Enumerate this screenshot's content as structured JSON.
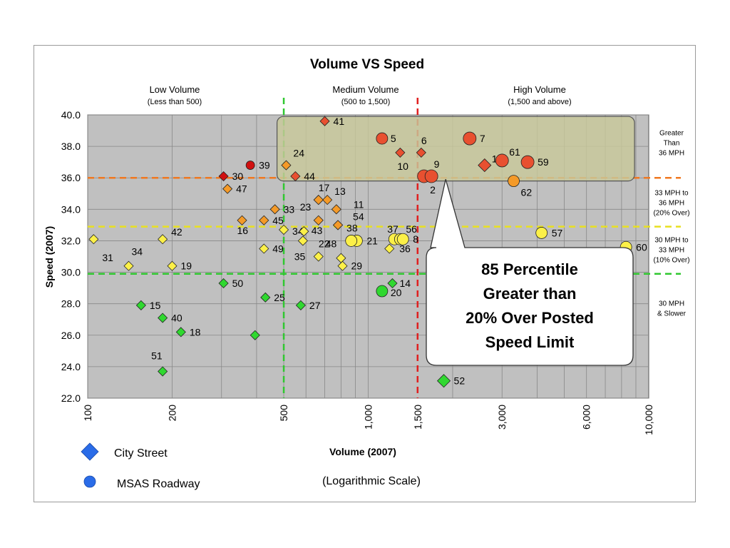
{
  "chart_data": {
    "type": "scatter",
    "title": "Volume VS Speed",
    "xlabel": "Volume (2007)",
    "xlabel_note": "(Logarithmic Scale)",
    "ylabel": "Speed (2007)",
    "x_scale": "log",
    "xlim": [
      100,
      10000
    ],
    "ylim": [
      22,
      40
    ],
    "grid": true,
    "x_ticks": [
      {
        "v": 100,
        "label": "100"
      },
      {
        "v": 200,
        "label": "200"
      },
      {
        "v": 500,
        "label": "500"
      },
      {
        "v": 1000,
        "label": "1,000"
      },
      {
        "v": 1500,
        "label": "1,500"
      },
      {
        "v": 3000,
        "label": "3,000"
      },
      {
        "v": 6000,
        "label": "6,000"
      },
      {
        "v": 10000,
        "label": "10,000"
      }
    ],
    "y_ticks": [
      {
        "v": 40,
        "label": "40.0"
      },
      {
        "v": 38,
        "label": "38.0"
      },
      {
        "v": 36,
        "label": "36.0"
      },
      {
        "v": 34,
        "label": "34.0"
      },
      {
        "v": 32,
        "label": "32.0"
      },
      {
        "v": 30,
        "label": "30.0"
      },
      {
        "v": 28,
        "label": "28.0"
      },
      {
        "v": 26,
        "label": "26.0"
      },
      {
        "v": 24,
        "label": "24.0"
      },
      {
        "v": 22,
        "label": "22.0"
      }
    ],
    "volume_regions": [
      {
        "name": "Low Volume",
        "range": "(Less than 500)",
        "x": 245
      },
      {
        "name": "Medium Volume",
        "range": "(500 to 1,500)",
        "x": 513
      },
      {
        "name": "High Volume",
        "range": "(1,500 and above)",
        "x": 757
      }
    ],
    "threshold_lines": [
      {
        "axis": "y",
        "value": 36,
        "color": "#f07820"
      },
      {
        "axis": "y",
        "value": 32.9,
        "color": "#e8e020"
      },
      {
        "axis": "y",
        "value": 29.9,
        "color": "#30c830"
      },
      {
        "axis": "x",
        "value": 500,
        "color": "#30c830"
      },
      {
        "axis": "x",
        "value": 1500,
        "color": "#e02020"
      }
    ],
    "speed_bands": [
      {
        "lines": [
          "Greater",
          "Than",
          "36 MPH"
        ],
        "y": 38.2
      },
      {
        "lines": [
          "33 MPH to",
          "36 MPH",
          "(20% Over)"
        ],
        "y": 34.4
      },
      {
        "lines": [
          "30 MPH to",
          "33 MPH",
          "(10% Over)"
        ],
        "y": 31.4
      },
      {
        "lines": [
          "30 MPH",
          "& Slower"
        ],
        "y": 27.7
      }
    ],
    "colors": {
      "red": "#e85030",
      "dark_red": "#d01010",
      "orange": "#f49a28",
      "yellow": "#fcf048",
      "green": "#30d830",
      "plot_bg": "#c0c0c0",
      "highlight": "#c8c89a",
      "legend": "#2a6ce8"
    },
    "points": [
      {
        "id": "41",
        "x": 700,
        "y": 39.6,
        "shape": "diamond",
        "c": "red",
        "dx": 12,
        "dy": 0
      },
      {
        "id": "5",
        "x": 1120,
        "y": 38.5,
        "shape": "circle",
        "c": "red",
        "dx": 12,
        "dy": 0
      },
      {
        "id": "6",
        "x": 1545,
        "y": 37.6,
        "shape": "diamond",
        "c": "red",
        "dx": 0,
        "dy": -17
      },
      {
        "id": "7",
        "x": 2300,
        "y": 38.5,
        "shape": "circle-lg",
        "c": "red",
        "dx": 14,
        "dy": 0
      },
      {
        "id": "10",
        "x": 1300,
        "y": 37.6,
        "shape": "diamond",
        "c": "red",
        "dx": -4,
        "dy": 19
      },
      {
        "id": "24",
        "x": 510,
        "y": 36.8,
        "shape": "diamond",
        "c": "orange",
        "dx": 10,
        "dy": -17
      },
      {
        "id": "44",
        "x": 550,
        "y": 36.1,
        "shape": "diamond",
        "c": "red",
        "dx": 12,
        "dy": 0
      },
      {
        "id": "39",
        "x": 380,
        "y": 36.8,
        "shape": "circle-sm",
        "c": "dark_red",
        "dx": 12,
        "dy": 0
      },
      {
        "id": "30",
        "x": 305,
        "y": 36.1,
        "shape": "diamond",
        "c": "dark_red",
        "dx": 12,
        "dy": 0
      },
      {
        "id": "47",
        "x": 315,
        "y": 35.3,
        "shape": "diamond",
        "c": "orange",
        "dx": 12,
        "dy": 0
      },
      {
        "id": "9",
        "x": 1580,
        "y": 36.1,
        "shape": "circle-lg",
        "c": "red",
        "dx": 14,
        "dy": -17
      },
      {
        "id": "2",
        "x": 1680,
        "y": 36.1,
        "shape": "circle-lg",
        "c": "red",
        "dx": -2,
        "dy": 19
      },
      {
        "id": "1",
        "x": 2600,
        "y": 36.8,
        "shape": "diamond-lg",
        "c": "red",
        "dx": 10,
        "dy": -9
      },
      {
        "id": "61",
        "x": 3000,
        "y": 37.1,
        "shape": "circle-lg",
        "c": "red",
        "dx": 10,
        "dy": -12
      },
      {
        "id": "59",
        "x": 3700,
        "y": 37.0,
        "shape": "circle-lg",
        "c": "red",
        "dx": 14,
        "dy": 0
      },
      {
        "id": "62",
        "x": 3300,
        "y": 35.8,
        "shape": "circle",
        "c": "orange",
        "dx": 10,
        "dy": 16
      },
      {
        "id": "17",
        "x": 665,
        "y": 34.6,
        "shape": "diamond",
        "c": "orange",
        "dx": 0,
        "dy": -17
      },
      {
        "id": "13",
        "x": 715,
        "y": 34.6,
        "shape": "diamond",
        "c": "orange",
        "dx": 10,
        "dy": -12
      },
      {
        "id": "23",
        "x": 665,
        "y": 34.6,
        "shape": "diamond",
        "c": "orange",
        "dx": -26,
        "dy": 10
      },
      {
        "id": "33",
        "x": 465,
        "y": 34.0,
        "shape": "diamond",
        "c": "orange",
        "dx": 12,
        "dy": 0
      },
      {
        "id": "11",
        "x": 770,
        "y": 34.0,
        "shape": "diamond",
        "c": "orange",
        "dx": 24,
        "dy": -7
      },
      {
        "id": "45",
        "x": 425,
        "y": 33.3,
        "shape": "diamond",
        "c": "orange",
        "dx": 12,
        "dy": 0
      },
      {
        "id": "16",
        "x": 355,
        "y": 33.3,
        "shape": "diamond",
        "c": "orange",
        "dx": -7,
        "dy": 14
      },
      {
        "id": "43",
        "x": 665,
        "y": 33.3,
        "shape": "diamond",
        "c": "orange",
        "dx": -10,
        "dy": 14
      },
      {
        "id": "54",
        "x": 780,
        "y": 33.0,
        "shape": "diamond",
        "c": "orange",
        "dx": 21,
        "dy": -12
      },
      {
        "id": "38",
        "x": 780,
        "y": 33.0,
        "shape": "diamond",
        "c": "orange",
        "dx": 12,
        "dy": 4
      },
      {
        "id": "34a",
        "label": "34",
        "x": 500,
        "y": 32.7,
        "shape": "diamond",
        "c": "yellow",
        "dx": 12,
        "dy": 2
      },
      {
        "id": "32",
        "x": 590,
        "y": 32.6,
        "shape": "diamond",
        "c": "yellow",
        "dx": 0,
        "dy": 0,
        "hide_label": true
      },
      {
        "id": "37",
        "x": 1240,
        "y": 32.1,
        "shape": "circle",
        "c": "yellow",
        "dx": -10,
        "dy": -14
      },
      {
        "id": "56",
        "x": 1300,
        "y": 32.1,
        "shape": "circle",
        "c": "yellow",
        "dx": 8,
        "dy": -14
      },
      {
        "id": "8",
        "x": 1330,
        "y": 32.1,
        "shape": "circle",
        "c": "yellow",
        "dx": 14,
        "dy": 0
      },
      {
        "id": "21",
        "x": 910,
        "y": 32.0,
        "shape": "circle",
        "c": "yellow",
        "dx": 14,
        "dy": 0
      },
      {
        "id": "48",
        "x": 870,
        "y": 32.0,
        "shape": "circle",
        "c": "yellow",
        "dx": -36,
        "dy": 4
      },
      {
        "id": "22",
        "x": 585,
        "y": 32.0,
        "shape": "diamond",
        "c": "yellow",
        "dx": 22,
        "dy": 4
      },
      {
        "id": "36",
        "x": 1190,
        "y": 31.5,
        "shape": "diamond",
        "c": "yellow",
        "dx": 14,
        "dy": 0
      },
      {
        "id": "31",
        "x": 105,
        "y": 32.1,
        "shape": "diamond",
        "c": "yellow",
        "dx": 12,
        "dy": 26
      },
      {
        "id": "42",
        "x": 185,
        "y": 32.1,
        "shape": "diamond",
        "c": "yellow",
        "dx": 12,
        "dy": -10
      },
      {
        "id": "34",
        "x": 140,
        "y": 30.4,
        "shape": "diamond",
        "c": "yellow",
        "dx": 4,
        "dy": -20
      },
      {
        "id": "19",
        "x": 200,
        "y": 30.4,
        "shape": "diamond",
        "c": "yellow",
        "dx": 12,
        "dy": 0
      },
      {
        "id": "49",
        "x": 425,
        "y": 31.5,
        "shape": "diamond",
        "c": "yellow",
        "dx": 12,
        "dy": 0
      },
      {
        "id": "35",
        "x": 665,
        "y": 31.0,
        "shape": "diamond",
        "c": "yellow",
        "dx": -34,
        "dy": 0
      },
      {
        "id": "29",
        "x": 810,
        "y": 30.4,
        "shape": "diamond",
        "c": "yellow",
        "dx": 12,
        "dy": 0
      },
      {
        "id": "28",
        "x": 800,
        "y": 30.9,
        "shape": "diamond",
        "c": "yellow",
        "dx": 0,
        "dy": 0,
        "hide_label": true
      },
      {
        "id": "57",
        "x": 4150,
        "y": 32.5,
        "shape": "circle",
        "c": "yellow",
        "dx": 14,
        "dy": 0
      },
      {
        "id": "60",
        "x": 8300,
        "y": 31.6,
        "shape": "circle",
        "c": "yellow",
        "dx": 14,
        "dy": 0
      },
      {
        "id": "50",
        "x": 305,
        "y": 29.3,
        "shape": "diamond",
        "c": "green",
        "dx": 12,
        "dy": 0
      },
      {
        "id": "14",
        "x": 1220,
        "y": 29.3,
        "shape": "diamond",
        "c": "green",
        "dx": 10,
        "dy": 0
      },
      {
        "id": "20",
        "x": 1120,
        "y": 28.8,
        "shape": "circle",
        "c": "green",
        "dx": 12,
        "dy": 2
      },
      {
        "id": "25",
        "x": 430,
        "y": 28.4,
        "shape": "diamond",
        "c": "green",
        "dx": 12,
        "dy": 0
      },
      {
        "id": "27",
        "x": 575,
        "y": 27.9,
        "shape": "diamond",
        "c": "green",
        "dx": 12,
        "dy": 0
      },
      {
        "id": "15",
        "x": 155,
        "y": 27.9,
        "shape": "diamond",
        "c": "green",
        "dx": 12,
        "dy": 0
      },
      {
        "id": "40",
        "x": 185,
        "y": 27.1,
        "shape": "diamond",
        "c": "green",
        "dx": 12,
        "dy": 0
      },
      {
        "id": "18",
        "x": 215,
        "y": 26.2,
        "shape": "diamond",
        "c": "green",
        "dx": 12,
        "dy": 0
      },
      {
        "id": "26",
        "x": 395,
        "y": 26.0,
        "shape": "diamond",
        "c": "green",
        "dx": 0,
        "dy": 0,
        "hide_label": true
      },
      {
        "id": "51",
        "x": 185,
        "y": 23.7,
        "shape": "diamond",
        "c": "green",
        "dx": -16,
        "dy": -22
      },
      {
        "id": "52",
        "x": 1860,
        "y": 23.1,
        "shape": "diamond-lg",
        "c": "green",
        "dx": 14,
        "dy": 0
      }
    ],
    "highlight_box": {
      "x0": 490,
      "x1": 8900,
      "y0": 35.8,
      "y1": 39.9
    },
    "callout": {
      "lines": [
        "85 Percentile",
        "Greater than",
        "20% Over Posted",
        "Speed Limit"
      ],
      "pointer_x": 1740,
      "pointer_y": 36.0
    },
    "legend": [
      {
        "shape": "diamond",
        "label": "City Street"
      },
      {
        "shape": "circle",
        "label": "MSAS Roadway"
      }
    ]
  }
}
